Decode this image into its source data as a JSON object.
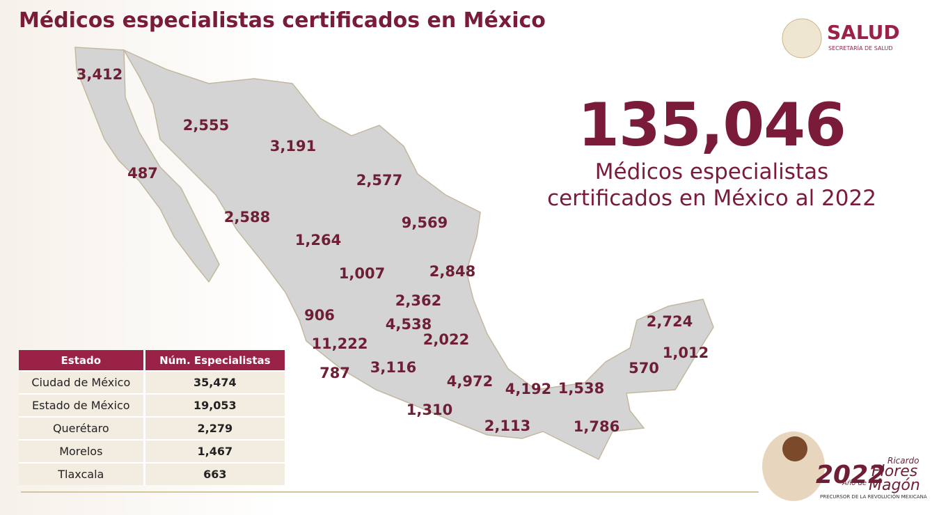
{
  "header": {
    "title": "Médicos especialistas certificados en México",
    "logo": {
      "name": "SALUD",
      "subtitle": "SECRETARÍA DE SALUD"
    }
  },
  "highlight": {
    "total": "135,046",
    "caption_lines": [
      "Médicos especialistas",
      "certificados en México al 2022"
    ]
  },
  "map": {
    "labels": [
      "3,412",
      "2,555",
      "3,191",
      "487",
      "2,577",
      "2,588",
      "9,569",
      "1,264",
      "1,007",
      "2,848",
      "2,362",
      "906",
      "4,538",
      "11,222",
      "2,022",
      "2,724",
      "1,012",
      "787",
      "3,116",
      "570",
      "4,972",
      "4,192",
      "1,538",
      "1,310",
      "2,113",
      "1,786"
    ]
  },
  "table": {
    "header": [
      "Estado",
      "Núm. Especialistas"
    ],
    "rows": [
      [
        "Ciudad de México",
        "35,474"
      ],
      [
        "Estado de México",
        "19,053"
      ],
      [
        "Querétaro",
        "2,279"
      ],
      [
        "Morelos",
        "1,467"
      ],
      [
        "Tlaxcala",
        "663"
      ]
    ]
  },
  "footer": {
    "year": "2022",
    "ano_de": "Año de",
    "name_lines": [
      "Ricardo",
      "Flores",
      "Magón"
    ],
    "tagline": "PRECURSOR DE LA REVOLUCIÓN MEXICANA"
  }
}
